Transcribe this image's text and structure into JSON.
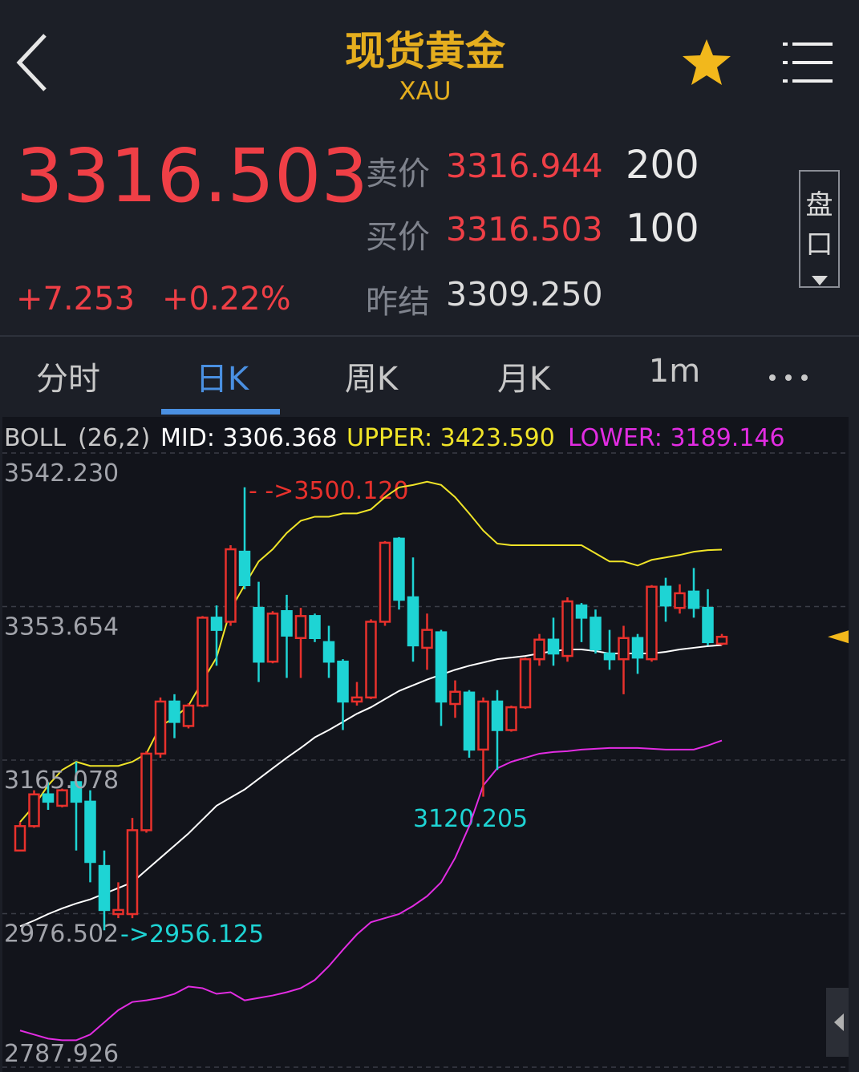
{
  "header": {
    "title": "现货黄金",
    "symbol": "XAU"
  },
  "quote": {
    "price": "3316.503",
    "sell_label": "卖价",
    "sell_price": "3316.944",
    "sell_volume": "200",
    "buy_label": "买价",
    "buy_price": "3316.503",
    "buy_volume": "100",
    "prev_label": "昨结",
    "prev_settle": "3309.250",
    "change": "+7.253",
    "change_percent": "+0.22%",
    "depth_button": [
      "盘",
      "口"
    ]
  },
  "tabs": [
    "分时",
    "日K",
    "周K",
    "月K",
    "1m"
  ],
  "chart_data": {
    "type": "candlestick",
    "indicator": "BOLL",
    "params": "(26,2)",
    "up_color": "#e8312c",
    "down_color": "#1ed4d4",
    "grid": true,
    "ylim": [
      2787.926,
      3542.23
    ],
    "yticks": [
      2787.926,
      2976.502,
      3165.078,
      3353.654,
      {
        "value": 3542.23,
        "label": "3542.230"
      }
    ],
    "open": [
      3054,
      3084,
      3123,
      3109,
      3138,
      3114,
      3035,
      2976,
      2976,
      3079,
      3173,
      3237,
      3207,
      3232,
      3340,
      3335,
      3421,
      3352,
      3286,
      3348,
      3315,
      3342,
      3310,
      3286,
      3237,
      3242,
      3335,
      3437,
      3365,
      3303,
      3322,
      3234,
      3248,
      3178,
      3237,
      3202,
      3230,
      3289,
      3313,
      3293,
      3355,
      3340,
      3296,
      3289,
      3315,
      3289,
      3378,
      3352,
      3372,
      3352,
      3308
    ],
    "high": [
      3089,
      3128,
      3138,
      3130,
      3163,
      3128,
      3054,
      3015,
      3094,
      3176,
      3242,
      3246,
      3235,
      3342,
      3355,
      3429,
      3500.12,
      3384,
      3348,
      3368,
      3352,
      3345,
      3330,
      3289,
      3261,
      3338,
      3434,
      3439,
      3414,
      3345,
      3325,
      3263,
      3251,
      3242,
      3251,
      3232,
      3291,
      3320,
      3340,
      3365,
      3358,
      3350,
      3325,
      3330,
      3320,
      3380,
      3389,
      3381,
      3401,
      3375,
      3320
    ],
    "low": [
      3053,
      3082,
      3104,
      3107,
      3054,
      3015,
      2956.125,
      2971,
      2971,
      3076,
      3168,
      3192,
      3204,
      3230,
      3281,
      3330,
      3375,
      3261,
      3284,
      3266,
      3266,
      3310,
      3266,
      3202,
      3232,
      3240,
      3330,
      3350,
      3286,
      3276,
      3207,
      3217,
      3168,
      3120.205,
      3153,
      3200,
      3228,
      3281,
      3281,
      3286,
      3310,
      3296,
      3276,
      3246,
      3271,
      3286,
      3335,
      3345,
      3340,
      3306,
      3306
    ],
    "close": [
      3084,
      3123,
      3114,
      3128,
      3114,
      3040,
      2981,
      2981,
      3079,
      3173,
      3237,
      3212,
      3232,
      3340,
      3325,
      3424,
      3380,
      3286,
      3345,
      3318,
      3342,
      3315,
      3286,
      3237,
      3242,
      3335,
      3432,
      3362,
      3306,
      3325,
      3237,
      3249,
      3178,
      3237,
      3202,
      3230,
      3289,
      3313,
      3296,
      3360,
      3340,
      3301,
      3289,
      3315,
      3291,
      3378,
      3355,
      3370,
      3352,
      3310,
      3316.503
    ],
    "lines": [
      {
        "label": "MID: 3306.368",
        "color": "#ffffff",
        "values": [
          2961,
          2968,
          2976,
          2983,
          2989,
          2994,
          3001,
          3008,
          3015,
          3030,
          3045,
          3060,
          3075,
          3092,
          3109,
          3119,
          3129,
          3142,
          3155,
          3168,
          3180,
          3193,
          3202,
          3212,
          3222,
          3230,
          3240,
          3250,
          3257,
          3264,
          3270,
          3276,
          3281,
          3285,
          3289,
          3291,
          3293,
          3296,
          3299,
          3301,
          3301,
          3299,
          3296,
          3296,
          3296,
          3296,
          3298,
          3301,
          3303,
          3305,
          3306.368
        ]
      },
      {
        "label": "UPPER: 3423.590",
        "color": "#f0e428",
        "values": [
          3089,
          3109,
          3134,
          3153,
          3163,
          3158,
          3158,
          3158,
          3163,
          3173,
          3207,
          3217,
          3232,
          3262,
          3291,
          3350,
          3380,
          3409,
          3424,
          3444,
          3459,
          3464,
          3464,
          3468,
          3468,
          3473,
          3488,
          3500,
          3503,
          3507,
          3503,
          3488,
          3468,
          3447,
          3431,
          3429,
          3429,
          3429,
          3429,
          3429,
          3429,
          3419,
          3409,
          3409,
          3404,
          3411,
          3414,
          3417,
          3421,
          3423,
          3423.59
        ]
      },
      {
        "label": "LOWER: 3189.146",
        "color": "#e22ce2",
        "values": [
          2833,
          2828,
          2823,
          2821,
          2821,
          2828,
          2843,
          2858,
          2868,
          2870,
          2873,
          2878,
          2887,
          2885,
          2878,
          2880,
          2870,
          2873,
          2876,
          2880,
          2885,
          2895,
          2912,
          2932,
          2951,
          2966,
          2971,
          2976,
          2986,
          2998,
          3015,
          3045,
          3084,
          3134,
          3155,
          3163,
          3168,
          3173,
          3175,
          3176,
          3178,
          3179,
          3180,
          3180,
          3180,
          3179,
          3178,
          3178,
          3178,
          3183,
          3189.146
        ]
      }
    ],
    "annotations": [
      "- ->3500.120",
      "->2956.125",
      "3120.205"
    ]
  }
}
